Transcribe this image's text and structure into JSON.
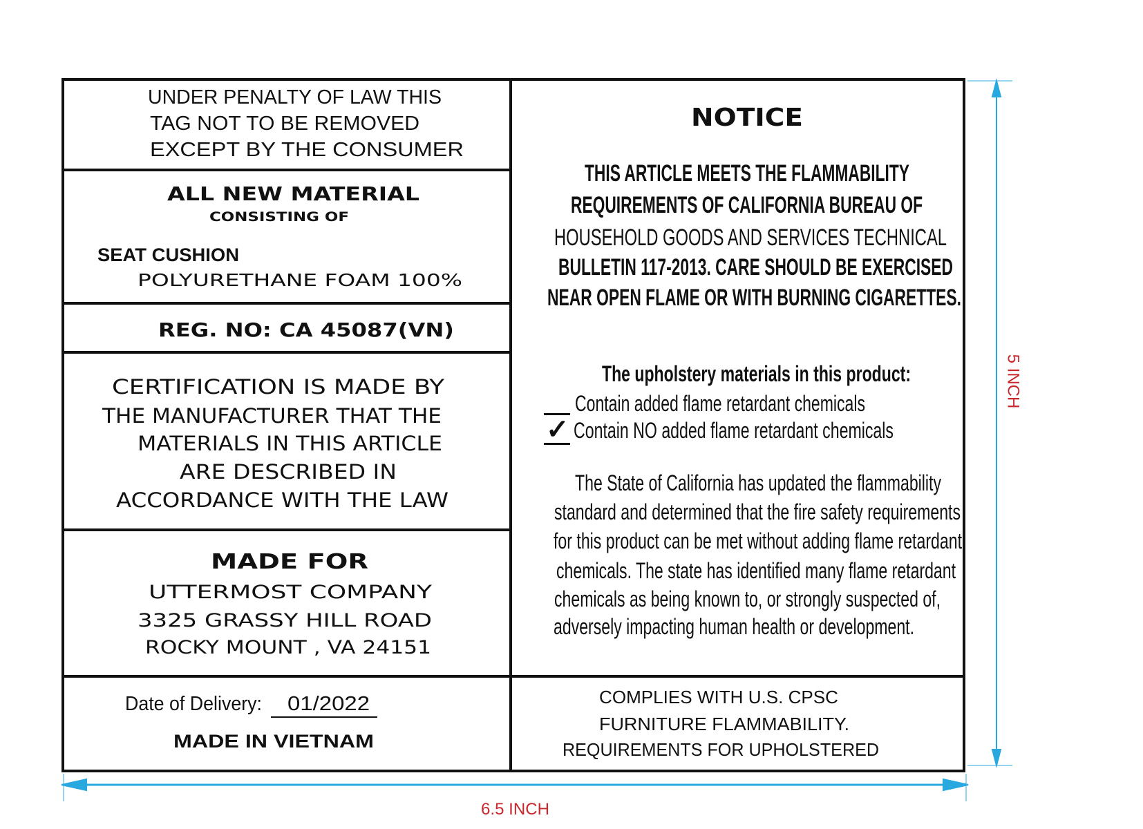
{
  "left": {
    "penalty_lines": [
      "UNDER PENALTY OF LAW THIS",
      "TAG NOT TO BE REMOVED",
      "EXCEPT BY THE CONSUMER"
    ],
    "material_title": "ALL NEW MATERIAL",
    "consisting_of": "CONSISTING OF",
    "component": "SEAT CUSHION",
    "composition": "POLYURETHANE FOAM 100%",
    "reg_no": "REG. NO:  CA 45087(VN)",
    "certification_lines": [
      "CERTIFICATION IS MADE BY",
      "THE MANUFACTURER THAT THE",
      "MATERIALS IN THIS ARTICLE",
      "ARE DESCRIBED IN",
      "ACCORDANCE WITH THE LAW"
    ],
    "made_for_title": "MADE FOR",
    "made_for_lines": [
      "UTTERMOST COMPANY",
      "3325 GRASSY HILL ROAD",
      "ROCKY MOUNT , VA 24151"
    ],
    "delivery_label": "Date of Delivery:",
    "delivery_value": "01/2022",
    "origin": "MADE IN VIETNAM"
  },
  "right": {
    "notice_title": "NOTICE",
    "notice_lines": [
      "THIS ARTICLE MEETS THE FLAMMABILITY",
      "REQUIREMENTS OF CALIFORNIA BUREAU OF",
      "HOUSEHOLD GOODS AND SERVICES TECHNICAL",
      "BULLETIN 117-2013. CARE SHOULD BE EXERCISED",
      "NEAR OPEN FLAME OR WITH BURNING CIGARETTES."
    ],
    "upholstery_heading": "The upholstery materials in this product:",
    "options": [
      {
        "label": "Contain added flame retardant chemicals",
        "checked": false
      },
      {
        "label": "Contain NO added flame retardant chemicals",
        "checked": true
      }
    ],
    "check_mark": "✓",
    "paragraph_lines": [
      "The State of California has updated the flammability",
      "standard and determined that the fire safety requirements",
      "for this product can be met without adding flame retardant",
      "chemicals. The state has identified many flame retardant",
      "chemicals as being known to, or strongly suspected of,",
      "adversely impacting human health or development."
    ],
    "complies_lines": [
      "COMPLIES WITH U.S. CPSC",
      "FURNITURE  FLAMMABILITY.",
      "REQUIREMENTS FOR UPHOLSTERED"
    ]
  },
  "dimensions": {
    "width_label": "6.5 INCH",
    "height_label": "5 INCH",
    "line_color": "#29a8e0",
    "label_color": "#c8282e"
  }
}
